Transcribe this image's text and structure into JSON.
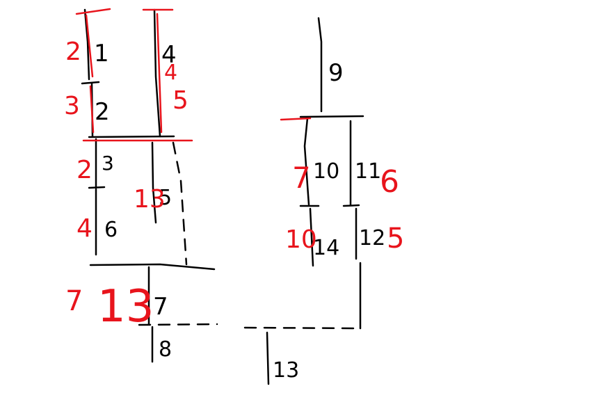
{
  "colors": {
    "ink": "#000000",
    "annotation": "#e8141c",
    "background": "#ffffff"
  },
  "black_labels": [
    "1",
    "2",
    "3",
    "4",
    "5",
    "6",
    "7",
    "8",
    "9",
    "10",
    "11",
    "12",
    "13",
    "14"
  ],
  "red_labels": [
    "2",
    "3",
    "4",
    "5",
    "2",
    "13",
    "4",
    "7",
    "13",
    "7",
    "6",
    "10",
    "5"
  ]
}
